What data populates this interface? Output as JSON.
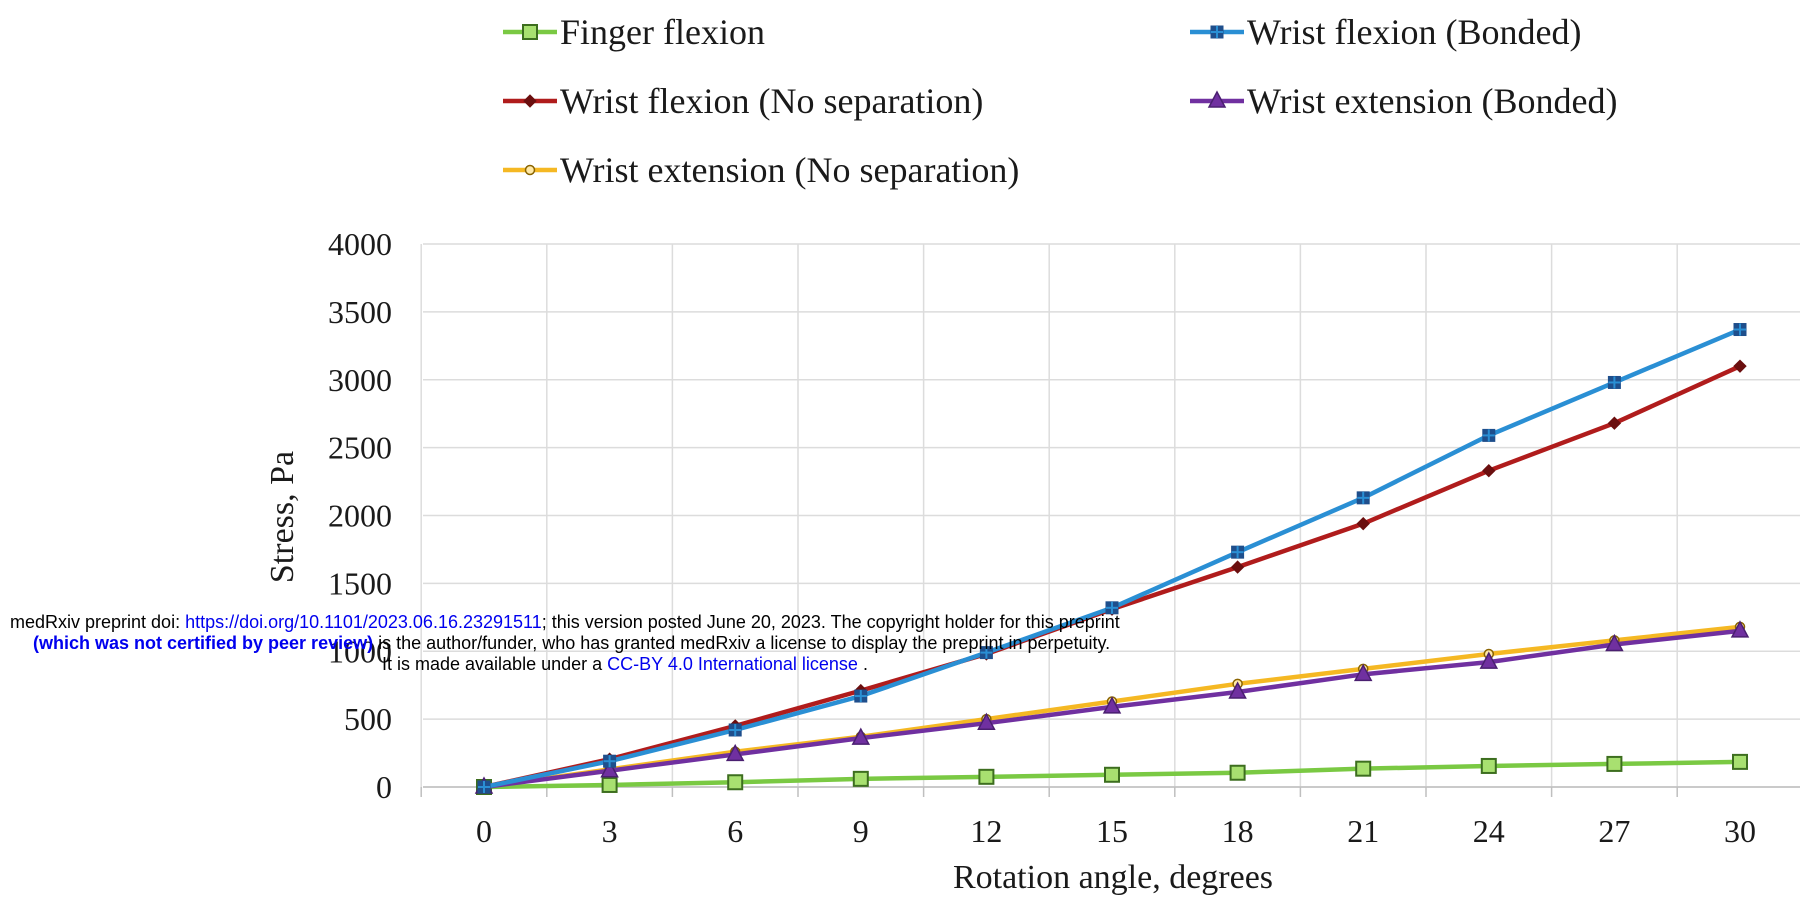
{
  "chart_data": {
    "type": "line",
    "title": "",
    "xlabel": "Rotation angle,  degrees",
    "ylabel": "Stress, Pa",
    "x": [
      0,
      3,
      6,
      9,
      12,
      15,
      18,
      21,
      24,
      27,
      30
    ],
    "xticks": [
      "0",
      "3",
      "6",
      "9",
      "12",
      "15",
      "18",
      "21",
      "24",
      "27",
      "30"
    ],
    "yticks": [
      "0",
      "500",
      "1000",
      "1500",
      "2000",
      "2500",
      "3000",
      "3500",
      "4000"
    ],
    "xlim": [
      0,
      30
    ],
    "ylim": [
      0,
      4000
    ],
    "grid": true,
    "legend_position": "top",
    "series": [
      {
        "name": "Finger flexion",
        "color": "#7ac943",
        "marker": "square",
        "values": [
          0,
          15,
          35,
          60,
          75,
          90,
          105,
          135,
          155,
          170,
          185
        ]
      },
      {
        "name": "Wrist flexion (Bonded)",
        "color": "#2a8fd4",
        "marker": "plus",
        "values": [
          0,
          190,
          420,
          670,
          990,
          1320,
          1730,
          2130,
          2590,
          2980,
          3370
        ]
      },
      {
        "name": "Wrist flexion (No separation)",
        "color": "#b01c1c",
        "marker": "diamond",
        "values": [
          0,
          205,
          450,
          710,
          980,
          1310,
          1620,
          1940,
          2330,
          2680,
          3100
        ]
      },
      {
        "name": "Wrist extension (Bonded)",
        "color": "#7030a0",
        "marker": "triangle",
        "values": [
          0,
          120,
          240,
          360,
          470,
          590,
          700,
          830,
          920,
          1050,
          1150
        ]
      },
      {
        "name": "Wrist extension (No separation)",
        "color": "#f5b823",
        "marker": "circle",
        "values": [
          0,
          130,
          260,
          370,
          500,
          630,
          760,
          870,
          980,
          1080,
          1180
        ]
      }
    ]
  },
  "notice": {
    "line1_prefix": "medRxiv preprint doi: ",
    "doi_url": "https://doi.org/10.1101/2023.06.16.23291511",
    "line1_suffix": "; this version posted June 20, 2023. The copyright holder for this preprint",
    "line2_bold": "(which was not certified by peer review)",
    "line2_suffix": " is the author/funder, who has granted medRxiv a license to display the preprint in perpetuity.",
    "line3_prefix": "It is made available under a ",
    "license_link": "CC-BY 4.0 International license",
    "line3_suffix": " ."
  }
}
